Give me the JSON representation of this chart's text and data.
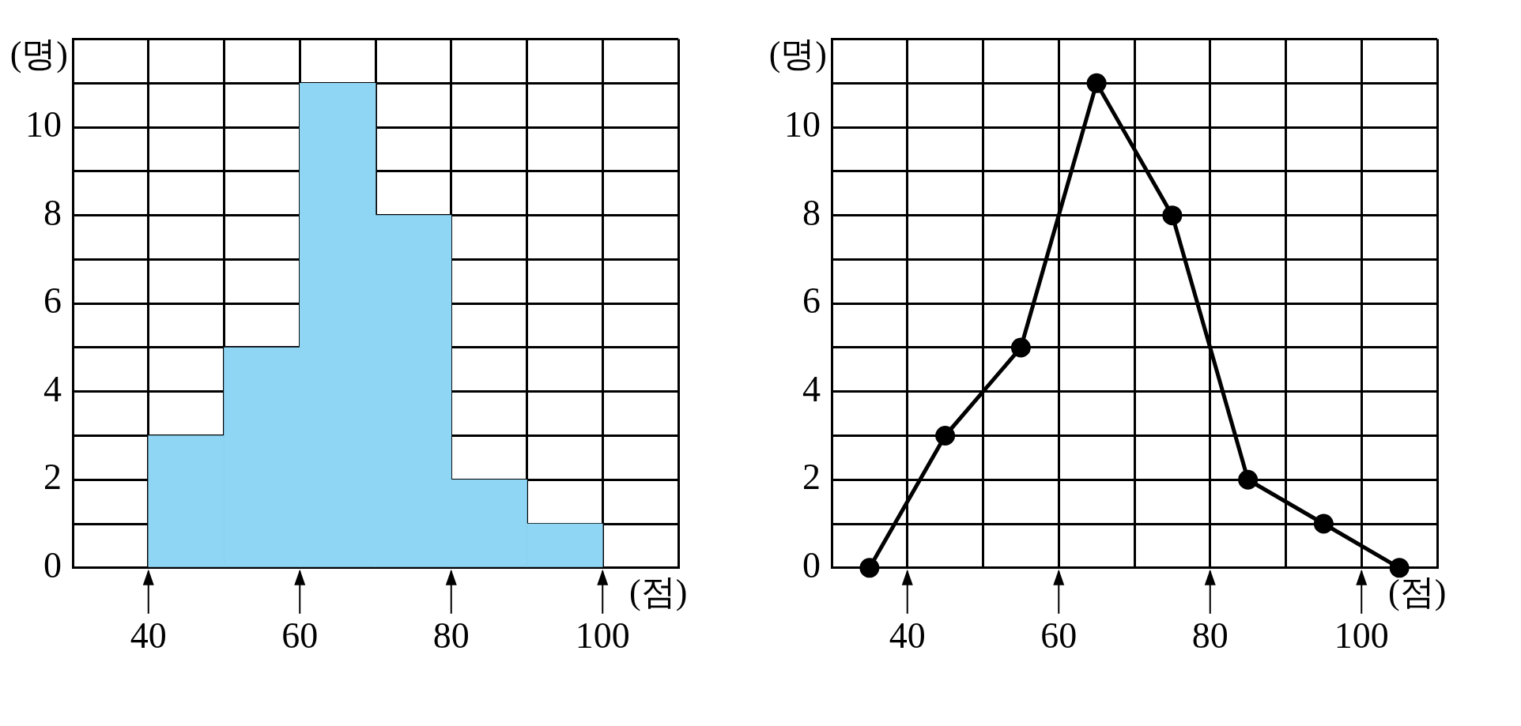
{
  "chart_data": [
    {
      "type": "histogram",
      "xlabel": "(점)",
      "ylabel": "(명)",
      "bins": [
        40,
        50,
        60,
        70,
        80,
        90,
        100
      ],
      "values": [
        3,
        5,
        11,
        8,
        2,
        1
      ],
      "color": "#8fd6f5",
      "xlim": [
        30,
        110
      ],
      "ylim": [
        0,
        12
      ],
      "xticks": [
        {
          "value": 30,
          "label": null
        },
        40,
        {
          "value": 50,
          "label": null
        },
        60,
        {
          "value": 70,
          "label": null
        },
        80,
        {
          "value": 90,
          "label": null
        },
        100,
        {
          "value": 110,
          "label": null
        }
      ],
      "yticks": [
        0,
        {
          "value": 1,
          "label": null
        },
        2,
        {
          "value": 3,
          "label": null
        },
        4,
        {
          "value": 5,
          "label": null
        },
        6,
        {
          "value": 7,
          "label": null
        },
        8,
        {
          "value": 9,
          "label": null
        },
        10,
        {
          "value": 11,
          "label": null
        },
        {
          "value": 12,
          "label": null
        }
      ],
      "grid": true
    },
    {
      "type": "line",
      "xlabel": "(점)",
      "ylabel": "(명)",
      "x": [
        35,
        45,
        55,
        65,
        75,
        85,
        95,
        105
      ],
      "values": [
        0,
        3,
        5,
        11,
        8,
        2,
        1,
        0
      ],
      "color": "#000000",
      "marker": "circle",
      "xlim": [
        30,
        110
      ],
      "ylim": [
        0,
        12
      ],
      "xticks": [
        {
          "value": 30,
          "label": null
        },
        40,
        {
          "value": 50,
          "label": null
        },
        60,
        {
          "value": 70,
          "label": null
        },
        80,
        {
          "value": 90,
          "label": null
        },
        100,
        {
          "value": 110,
          "label": null
        }
      ],
      "yticks": [
        0,
        {
          "value": 1,
          "label": null
        },
        2,
        {
          "value": 3,
          "label": null
        },
        4,
        {
          "value": 5,
          "label": null
        },
        6,
        {
          "value": 7,
          "label": null
        },
        8,
        {
          "value": 9,
          "label": null
        },
        10,
        {
          "value": 11,
          "label": null
        },
        {
          "value": 12,
          "label": null
        }
      ],
      "grid": true
    }
  ]
}
